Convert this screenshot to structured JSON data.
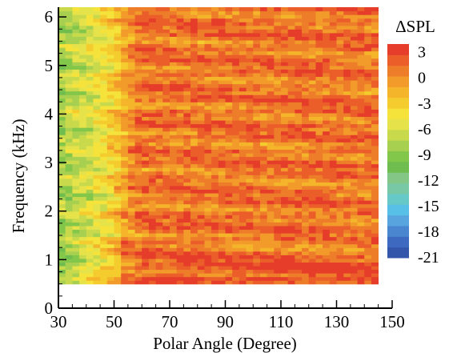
{
  "chart_data": {
    "type": "heatmap",
    "title": "",
    "xlabel": "Polar Angle (Degree)",
    "ylabel": "Frequency (kHz)",
    "xlim": [
      30,
      150
    ],
    "ylim": [
      0,
      6.2
    ],
    "x_ticks": [
      "30",
      "50",
      "70",
      "90",
      "110",
      "130",
      "150"
    ],
    "y_ticks": [
      "0",
      "1",
      "2",
      "3",
      "4",
      "5",
      "6"
    ],
    "data_x_range": [
      30,
      145
    ],
    "data_y_range": [
      0.5,
      6.2
    ],
    "colorbar": {
      "title": "ΔSPL",
      "range": [
        -21,
        4
      ],
      "ticks": [
        "3",
        "0",
        "-3",
        "-6",
        "-9",
        "-12",
        "-15",
        "-18",
        "-21"
      ],
      "colors": [
        "#3355aa",
        "#3d6ac0",
        "#4a86cf",
        "#58a4de",
        "#58bfe6",
        "#66c9c8",
        "#78c8a6",
        "#84c685",
        "#6ebd4e",
        "#82c64a",
        "#a8d050",
        "#c8da4c",
        "#e6e24a",
        "#f5e23a",
        "#f5cc2e",
        "#f5b52a",
        "#f29a2a",
        "#ee7d2a",
        "#eb5e2a",
        "#e63c2a"
      ]
    },
    "region_levels_dB": [
      {
        "name": "low-angle band 30-45 deg, 1.5-6 kHz",
        "value": -8
      },
      {
        "name": "transition 45-60 deg",
        "value": -3
      },
      {
        "name": "mid/high angle 60-145 deg, 2-6 kHz",
        "value": 1.5
      },
      {
        "name": "low frequency 0.5-1.5 kHz, 60-140 deg",
        "value": 2.5
      },
      {
        "name": "low frequency corner 30-50 deg, 0.5-1 kHz",
        "value": -9
      }
    ]
  }
}
